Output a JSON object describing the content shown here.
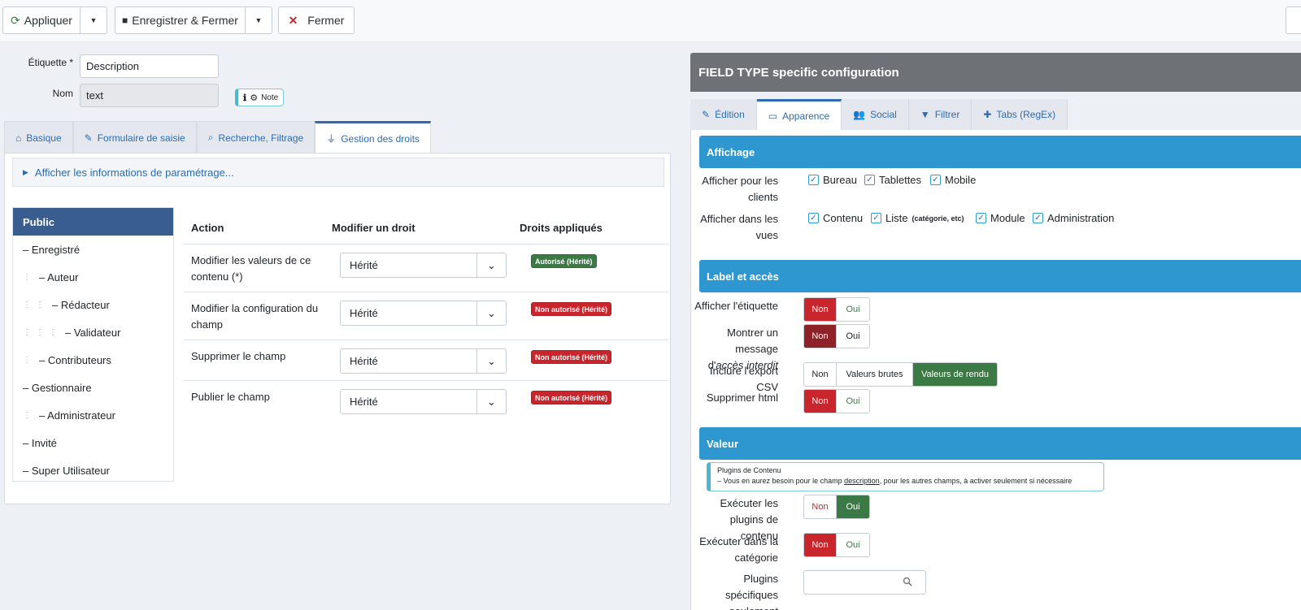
{
  "toolbar": {
    "apply_label": "Appliquer",
    "save_close_label": "Enregistrer & Fermer",
    "close_label": "Fermer"
  },
  "form": {
    "label_caption": "Étiquette *",
    "label_value": "Description",
    "name_caption": "Nom",
    "name_value": "text",
    "note_label": "Note"
  },
  "tabs": [
    {
      "label": "Basique"
    },
    {
      "label": "Formulaire de saisie"
    },
    {
      "label": "Recherche, Filtrage"
    },
    {
      "label": "Gestion des droits"
    }
  ],
  "permissions": {
    "accordion_label": "Afficher les informations de paramétrage...",
    "groups": [
      "Public",
      "– Enregistré",
      "– Auteur",
      "– Rédacteur",
      "– Validateur",
      "– Contributeurs",
      "– Gestionnaire",
      "– Administrateur",
      "– Invité",
      "– Super Utilisateur"
    ],
    "headers": {
      "action": "Action",
      "modify": "Modifier un droit",
      "applied": "Droits appliqués"
    },
    "rows": [
      {
        "action": "Modifier les valeurs de ce contenu (*)",
        "value": "Hérité",
        "badge": "Autorisé (Hérité)",
        "badge_color": "#3c7a45"
      },
      {
        "action": "Modifier la configuration du champ",
        "value": "Hérité",
        "badge": "Non autorisé (Hérité)",
        "badge_color": "#c9252d"
      },
      {
        "action": "Supprimer le champ",
        "value": "Hérité",
        "badge": "Non autorisé (Hérité)",
        "badge_color": "#c9252d"
      },
      {
        "action": "Publier le champ",
        "value": "Hérité",
        "badge": "Non autorisé (Hérité)",
        "badge_color": "#c9252d"
      }
    ]
  },
  "config": {
    "title": "FIELD TYPE specific configuration",
    "tabs": [
      {
        "label": "Édition"
      },
      {
        "label": "Apparence"
      },
      {
        "label": "Social"
      },
      {
        "label": "Filtrer"
      },
      {
        "label": "Tabs (RegEx)"
      }
    ],
    "affichage": {
      "title": "Affichage",
      "clients_label": "Afficher pour les clients",
      "clients": [
        "Bureau",
        "Tablettes",
        "Mobile"
      ],
      "views_label": "Afficher dans les vues",
      "views": [
        "Contenu",
        "Liste",
        "Module",
        "Administration"
      ],
      "views_list_suffix": "(catégorie, etc)"
    },
    "label_acces": {
      "title": "Label et accès",
      "show_label": "Afficher l'étiquette",
      "msg_label_1": "Montrer un message",
      "msg_label_2a": "d'",
      "msg_label_2b": "accès interdit",
      "csv_label": "Inclure l'export CSV",
      "strip_html": "Supprimer html",
      "non": "Non",
      "oui": "Oui",
      "raw": "Valeurs brutes",
      "rendered": "Valeurs de rendu"
    },
    "valeur": {
      "title": "Valeur",
      "info_title": "Plugins de Contenu",
      "info_text_1": "– Vous en aurez besoin pour le champ ",
      "info_link": "description",
      "info_text_2": ", pour les autres champs, à activer seulement si nécessaire",
      "run_plugins": "Exécuter les plugins de contenu",
      "run_category": "Exécuter dans la catégorie",
      "specific_plugins": "Plugins spécifiques seulement"
    }
  },
  "colors": {
    "primary": "#2e6bb0",
    "section": "#2f97cf",
    "danger": "#c9252d",
    "success": "#3c7a45"
  }
}
